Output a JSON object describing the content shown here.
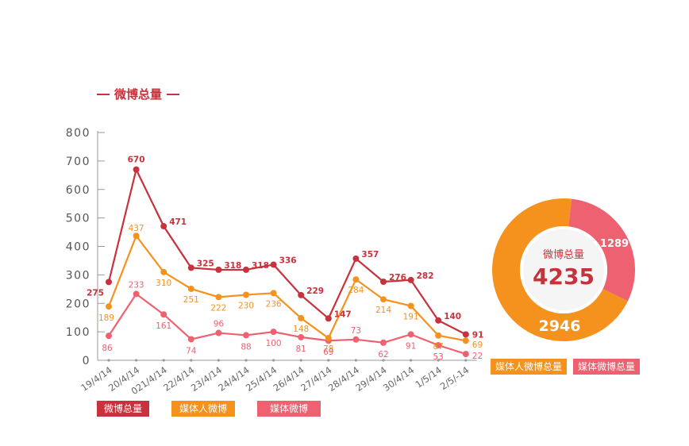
{
  "title": "微博总量",
  "colors": {
    "total": "#c8323c",
    "media_person": "#f5921e",
    "media": "#ee6170",
    "axis": "#999999",
    "donut_center": "#f5f5f5"
  },
  "chart_data": [
    {
      "type": "line",
      "categories": [
        "19/4/14",
        "20/4/14",
        "021/4/14",
        "22/4/14",
        "23/4/14",
        "24/4/14",
        "25/4/14",
        "26/4/14",
        "27/4/14",
        "28/4/14",
        "29/4/14",
        "30/4/14",
        "1/5/14",
        "2/5/-14"
      ],
      "ylim": [
        0,
        800
      ],
      "yticks": [
        0,
        100,
        200,
        300,
        400,
        500,
        600,
        700,
        800
      ],
      "series": [
        {
          "name": "微博总量",
          "values": [
            275,
            670,
            471,
            325,
            318,
            318,
            336,
            229,
            147,
            357,
            276,
            282,
            140,
            91
          ]
        },
        {
          "name": "媒体人微博",
          "values": [
            189,
            437,
            310,
            251,
            222,
            230,
            236,
            148,
            78,
            284,
            214,
            191,
            87,
            69
          ]
        },
        {
          "name": "媒体微博",
          "values": [
            86,
            233,
            161,
            74,
            96,
            88,
            100,
            81,
            69,
            73,
            62,
            91,
            53,
            22
          ]
        }
      ],
      "legend": [
        "微博总量",
        "媒体人微博",
        "媒体微博"
      ]
    },
    {
      "type": "pie",
      "center_label": "微博总量",
      "center_value": "4235",
      "slices": [
        {
          "name": "媒体人微博总量",
          "value": 2946
        },
        {
          "name": "媒体微博总量",
          "value": 1289
        }
      ]
    }
  ]
}
